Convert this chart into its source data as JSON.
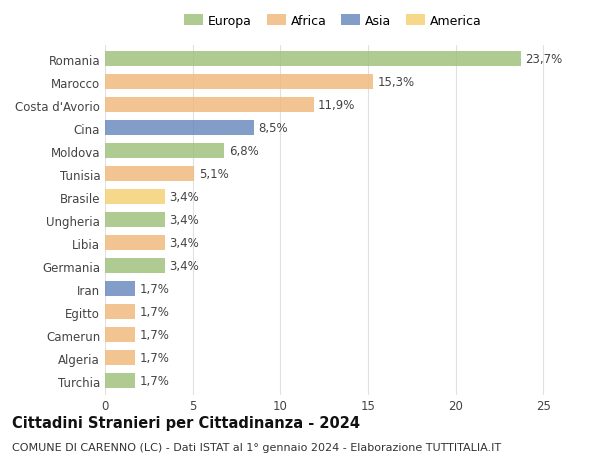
{
  "countries": [
    "Romania",
    "Marocco",
    "Costa d'Avorio",
    "Cina",
    "Moldova",
    "Tunisia",
    "Brasile",
    "Ungheria",
    "Libia",
    "Germania",
    "Iran",
    "Egitto",
    "Camerun",
    "Algeria",
    "Turchia"
  ],
  "values": [
    23.7,
    15.3,
    11.9,
    8.5,
    6.8,
    5.1,
    3.4,
    3.4,
    3.4,
    3.4,
    1.7,
    1.7,
    1.7,
    1.7,
    1.7
  ],
  "labels": [
    "23,7%",
    "15,3%",
    "11,9%",
    "8,5%",
    "6,8%",
    "5,1%",
    "3,4%",
    "3,4%",
    "3,4%",
    "3,4%",
    "1,7%",
    "1,7%",
    "1,7%",
    "1,7%",
    "1,7%"
  ],
  "continents": [
    "Europa",
    "Africa",
    "Africa",
    "Asia",
    "Europa",
    "Africa",
    "America",
    "Europa",
    "Africa",
    "Europa",
    "Asia",
    "Africa",
    "Africa",
    "Africa",
    "Europa"
  ],
  "colors": {
    "Europa": "#9fc07a",
    "Africa": "#f0b87a",
    "Asia": "#6688bb",
    "America": "#f5d070"
  },
  "title": "Cittadini Stranieri per Cittadinanza - 2024",
  "subtitle": "COMUNE DI CARENNO (LC) - Dati ISTAT al 1° gennaio 2024 - Elaborazione TUTTITALIA.IT",
  "xlim": [
    0,
    26
  ],
  "xticks": [
    0,
    5,
    10,
    15,
    20,
    25
  ],
  "background_color": "#ffffff",
  "grid_color": "#e0e0e0",
  "bar_height": 0.65,
  "label_fontsize": 8.5,
  "tick_fontsize": 8.5,
  "title_fontsize": 10.5,
  "subtitle_fontsize": 8,
  "legend_fontsize": 9
}
